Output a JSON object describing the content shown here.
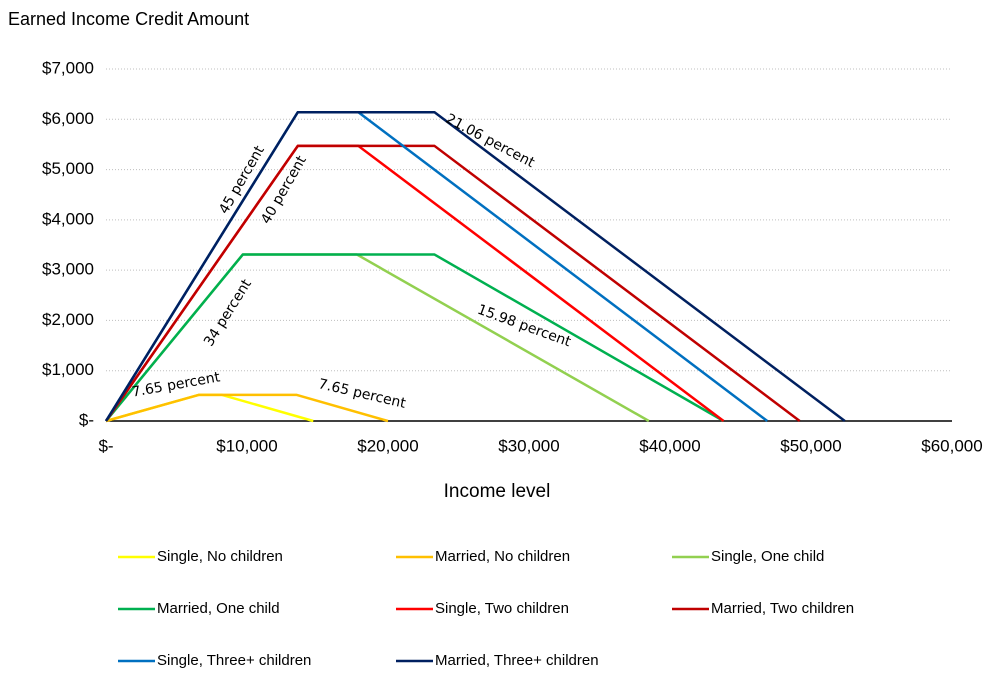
{
  "chart_data": {
    "type": "line",
    "title": "Earned Income Credit Amount",
    "x_label": "Income level",
    "xlim": [
      0,
      60000
    ],
    "xticks": [
      {
        "value": 0,
        "label": "$-"
      },
      {
        "value": 10000,
        "label": "$10,000"
      },
      {
        "value": 20000,
        "label": "$20,000"
      },
      {
        "value": 30000,
        "label": "$30,000"
      },
      {
        "value": 40000,
        "label": "$40,000"
      },
      {
        "value": 50000,
        "label": "$50,000"
      },
      {
        "value": 60000,
        "label": "$60,000"
      }
    ],
    "ylim": [
      0,
      7000
    ],
    "yticks": [
      {
        "value": 0,
        "label": "$-"
      },
      {
        "value": 1000,
        "label": "$1,000"
      },
      {
        "value": 2000,
        "label": "$2,000"
      },
      {
        "value": 3000,
        "label": "$3,000"
      },
      {
        "value": 4000,
        "label": "$4,000"
      },
      {
        "value": 5000,
        "label": "$5,000"
      },
      {
        "value": 6000,
        "label": "$6,000"
      },
      {
        "value": 7000,
        "label": "$7,000"
      }
    ],
    "grid": true,
    "legend": "bottom",
    "series": [
      {
        "name": "Single, No children",
        "color": "#ffff00",
        "x": [
          0,
          6600,
          8200,
          14700
        ],
        "values": [
          0,
          520,
          520,
          0
        ]
      },
      {
        "name": "Married, No children",
        "color": "#ffc000",
        "x": [
          0,
          6600,
          13500,
          20000
        ],
        "values": [
          0,
          520,
          520,
          0
        ]
      },
      {
        "name": "Single, One child",
        "color": "#92d050",
        "x": [
          0,
          9700,
          17800,
          38500
        ],
        "values": [
          0,
          3310,
          3310,
          0
        ]
      },
      {
        "name": "Married, One child",
        "color": "#00b050",
        "x": [
          0,
          9700,
          23300,
          43800
        ],
        "values": [
          0,
          3310,
          3310,
          0
        ]
      },
      {
        "name": "Single, Two children",
        "color": "#ff0000",
        "x": [
          0,
          13600,
          17900,
          43800
        ],
        "values": [
          0,
          5470,
          5470,
          0
        ]
      },
      {
        "name": "Married, Two children",
        "color": "#c00000",
        "x": [
          0,
          13600,
          23300,
          49200
        ],
        "values": [
          0,
          5470,
          5470,
          0
        ]
      },
      {
        "name": "Single, Three+ children",
        "color": "#0070c0",
        "x": [
          0,
          13600,
          17900,
          46900
        ],
        "values": [
          0,
          6140,
          6140,
          0
        ]
      },
      {
        "name": "Married, Three+ children",
        "color": "#002060",
        "x": [
          0,
          13600,
          23300,
          52400
        ],
        "values": [
          0,
          6140,
          6140,
          0
        ]
      }
    ],
    "annotations": [
      "45 percent",
      "40 percent",
      "34 percent",
      "7.65 percent",
      "7.65 percent",
      "21.06 percent",
      "15.98 percent"
    ]
  }
}
